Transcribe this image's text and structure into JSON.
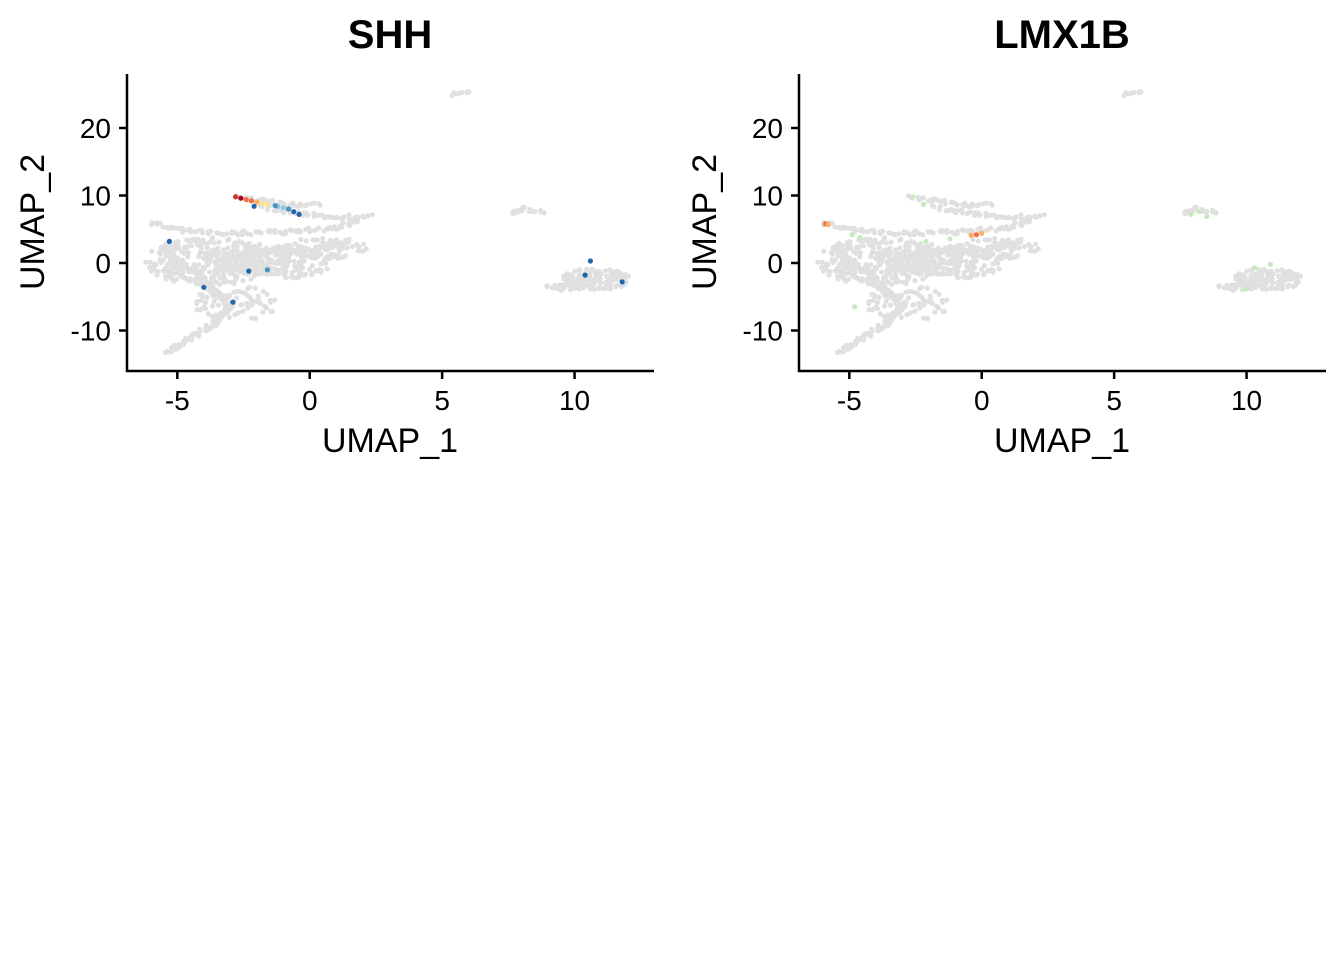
{
  "colors": {
    "background_cells": "#e0e0e0",
    "expression_scale": [
      "#2166ac",
      "#4393c3",
      "#92c5de",
      "#d1e5f0",
      "#fee090",
      "#fdae61",
      "#f46d43",
      "#d73027",
      "#a50026"
    ],
    "lmx1b_low": "#c7e9c0",
    "axis": "#000000"
  },
  "chart_data": [
    {
      "type": "scatter",
      "title": "SHH",
      "xlabel": "UMAP_1",
      "ylabel": "UMAP_2",
      "xlim": [
        -6.9,
        13
      ],
      "ylim": [
        -16,
        28
      ],
      "xticks": [
        -5,
        0,
        5,
        10
      ],
      "xtick_labels": [
        "-5",
        "0",
        "5",
        "10"
      ],
      "yticks": [
        -10,
        0,
        10,
        20
      ],
      "ytick_labels": [
        "-10",
        "0",
        "10",
        "20"
      ],
      "grid": false,
      "legend": "none",
      "highlighted_points": [
        {
          "x": -2.8,
          "y": 9.8,
          "level": 0.85
        },
        {
          "x": -2.6,
          "y": 9.6,
          "level": 0.95
        },
        {
          "x": -2.4,
          "y": 9.4,
          "level": 0.75
        },
        {
          "x": -2.2,
          "y": 9.2,
          "level": 0.7
        },
        {
          "x": -2.0,
          "y": 9.0,
          "level": 0.6
        },
        {
          "x": -1.8,
          "y": 8.8,
          "level": 0.55
        },
        {
          "x": -1.6,
          "y": 8.7,
          "level": 0.45
        },
        {
          "x": -1.4,
          "y": 8.6,
          "level": 0.35
        },
        {
          "x": -1.2,
          "y": 8.4,
          "level": 0.3
        },
        {
          "x": -1.0,
          "y": 8.2,
          "level": 0.2
        },
        {
          "x": -0.8,
          "y": 8.0,
          "level": 0.1
        },
        {
          "x": -0.6,
          "y": 7.6,
          "level": 0.05
        },
        {
          "x": -0.4,
          "y": 7.2,
          "level": 0.05
        },
        {
          "x": -2.1,
          "y": 8.4,
          "level": 0.05
        },
        {
          "x": -1.3,
          "y": 8.5,
          "level": 0.1
        },
        {
          "x": -5.3,
          "y": 3.2,
          "level": 0.05
        },
        {
          "x": -4.0,
          "y": -3.6,
          "level": 0.05
        },
        {
          "x": -2.9,
          "y": -5.8,
          "level": 0.05
        },
        {
          "x": -2.3,
          "y": -1.2,
          "level": 0.05
        },
        {
          "x": -1.6,
          "y": -1.0,
          "level": 0.1
        },
        {
          "x": 10.6,
          "y": 0.3,
          "level": 0.05
        },
        {
          "x": 10.4,
          "y": -1.8,
          "level": 0.05
        },
        {
          "x": 11.9,
          "y": -3.0,
          "level": 0.4
        },
        {
          "x": 11.8,
          "y": -2.8,
          "level": 0.05
        }
      ]
    },
    {
      "type": "scatter",
      "title": "LMX1B",
      "xlabel": "UMAP_1",
      "ylabel": "UMAP_2",
      "xlim": [
        -6.9,
        13
      ],
      "ylim": [
        -16,
        28
      ],
      "xticks": [
        -5,
        0,
        5,
        10
      ],
      "xtick_labels": [
        "-5",
        "0",
        "5",
        "10"
      ],
      "yticks": [
        -10,
        0,
        10,
        20
      ],
      "ytick_labels": [
        "-10",
        "0",
        "10",
        "20"
      ],
      "grid": false,
      "legend": "none",
      "highlighted_points": [
        {
          "x": -5.9,
          "y": 5.8,
          "level": 0.7
        },
        {
          "x": -5.8,
          "y": 5.7,
          "level": 0.6
        },
        {
          "x": -0.4,
          "y": 4.1,
          "level": 0.65
        },
        {
          "x": -0.2,
          "y": 4.2,
          "level": 0.7
        },
        {
          "x": 0.0,
          "y": 4.4,
          "level": 0.6
        },
        {
          "x": -4.9,
          "y": 4.2,
          "level": 0.3
        },
        {
          "x": -4.6,
          "y": 3.8,
          "level": 0.35
        },
        {
          "x": -2.1,
          "y": 3.2,
          "level": 0.3
        },
        {
          "x": -1.2,
          "y": 3.6,
          "level": 0.3
        },
        {
          "x": -2.6,
          "y": 9.8,
          "level": 0.3
        },
        {
          "x": -2.2,
          "y": 8.7,
          "level": 0.3
        },
        {
          "x": 7.9,
          "y": 7.2,
          "level": 0.3
        },
        {
          "x": 8.2,
          "y": 7.6,
          "level": 0.3
        },
        {
          "x": 8.5,
          "y": 6.9,
          "level": 0.3
        },
        {
          "x": 10.3,
          "y": -0.7,
          "level": 0.3
        },
        {
          "x": 10.9,
          "y": -0.2,
          "level": 0.3
        },
        {
          "x": 10.0,
          "y": -3.8,
          "level": 0.3
        },
        {
          "x": -4.8,
          "y": -6.5,
          "level": 0.3
        }
      ]
    }
  ]
}
